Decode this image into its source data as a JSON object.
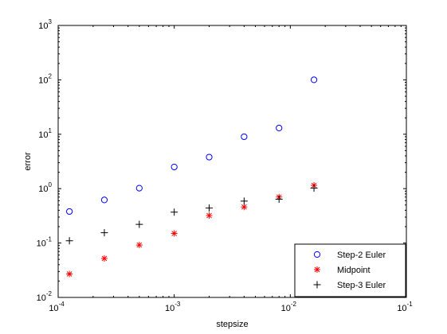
{
  "chart_data": {
    "type": "scatter",
    "xscale": "log",
    "yscale": "log",
    "xlim": [
      0.0001,
      0.1
    ],
    "ylim": [
      0.01,
      1000
    ],
    "xlabel": "stepsize",
    "ylabel": "error",
    "xticks": [
      {
        "value": 0.0001,
        "base": "10",
        "exp": "-4"
      },
      {
        "value": 0.001,
        "base": "10",
        "exp": "-3"
      },
      {
        "value": 0.01,
        "base": "10",
        "exp": "-2"
      },
      {
        "value": 0.1,
        "base": "10",
        "exp": "-1"
      }
    ],
    "yticks": [
      {
        "value": 0.01,
        "base": "10",
        "exp": "-2"
      },
      {
        "value": 0.1,
        "base": "10",
        "exp": "-1"
      },
      {
        "value": 1,
        "base": "10",
        "exp": "0"
      },
      {
        "value": 10,
        "base": "10",
        "exp": "1"
      },
      {
        "value": 100,
        "base": "10",
        "exp": "2"
      },
      {
        "value": 1000,
        "base": "10",
        "exp": "3"
      }
    ],
    "legend_position": "bottom-right",
    "series": [
      {
        "name": "Step-2 Euler",
        "marker": "circle",
        "color": "#0000ff",
        "x": [
          0.000125,
          0.00025,
          0.0005,
          0.001,
          0.002,
          0.004,
          0.008,
          0.016
        ],
        "y": [
          0.38,
          0.62,
          1.02,
          2.5,
          3.8,
          9.0,
          13.0,
          100.0
        ]
      },
      {
        "name": "Midpoint",
        "marker": "asterisk",
        "color": "#ff0000",
        "x": [
          0.000125,
          0.00025,
          0.0005,
          0.001,
          0.002,
          0.004,
          0.008,
          0.016
        ],
        "y": [
          0.027,
          0.052,
          0.092,
          0.15,
          0.32,
          0.46,
          0.7,
          1.15
        ]
      },
      {
        "name": "Step-3 Euler",
        "marker": "plus",
        "color": "#000000",
        "x": [
          0.000125,
          0.00025,
          0.0005,
          0.001,
          0.002,
          0.004,
          0.008,
          0.016
        ],
        "y": [
          0.11,
          0.155,
          0.22,
          0.37,
          0.44,
          0.59,
          0.64,
          1.02
        ]
      }
    ]
  }
}
